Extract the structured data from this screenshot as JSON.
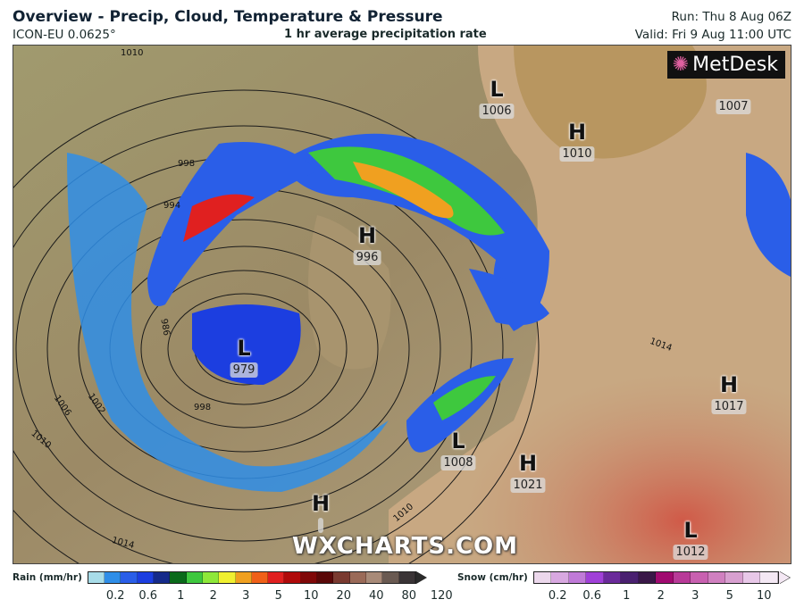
{
  "header": {
    "title": "Overview - Precip, Cloud, Temperature & Pressure",
    "model": "ICON-EU 0.0625°",
    "subtitle": "1 hr average precipitation rate",
    "run": "Run: Thu 8 Aug 06Z",
    "valid": "Valid: Fri 9 Aug 11:00 UTC"
  },
  "map": {
    "logo": "MetDesk",
    "watermark": "WXCHARTS.COM",
    "pressure_centers": [
      {
        "type": "L",
        "value": "1006"
      },
      {
        "type": "H",
        "value": "1010"
      },
      {
        "type": "",
        "value": "1007"
      },
      {
        "type": "H",
        "value": "996"
      },
      {
        "type": "L",
        "value": "979"
      },
      {
        "type": "H",
        "value": "1017"
      },
      {
        "type": "L",
        "value": "1008"
      },
      {
        "type": "H",
        "value": "1021"
      },
      {
        "type": "H",
        "value": ""
      },
      {
        "type": "L",
        "value": "1012"
      }
    ],
    "isobar_labels": [
      "1010",
      "998",
      "994",
      "986",
      "1002",
      "1006",
      "1010",
      "1014",
      "998",
      "1014",
      "1010"
    ]
  },
  "legend": {
    "rain": {
      "label": "Rain (mm/hr)",
      "ticks": [
        "0.2",
        "0.6",
        "1",
        "2",
        "3",
        "5",
        "10",
        "20",
        "40",
        "80",
        "120"
      ],
      "colors": [
        "#a8dce8",
        "#2f8ee8",
        "#2a5ee8",
        "#1c3ee0",
        "#152a8a",
        "#0a6a1a",
        "#3ec83e",
        "#8ee83a",
        "#f0f030",
        "#f0a020",
        "#f06018",
        "#e02020",
        "#b00a0a",
        "#800808",
        "#5a0808",
        "#7a3a30",
        "#9a6a58",
        "#a88a78",
        "#6a5a52",
        "#3a3436"
      ]
    },
    "snow": {
      "label": "Snow (cm/hr)",
      "ticks": [
        "0.2",
        "0.6",
        "1",
        "2",
        "3",
        "5",
        "10"
      ],
      "colors": [
        "#ecd8ec",
        "#d8a8e0",
        "#c07ad8",
        "#a040d8",
        "#6a2a9a",
        "#4a2070",
        "#3a1848",
        "#a00a70",
        "#b83a98",
        "#c860b0",
        "#d080c0",
        "#d8a0d0",
        "#e8c8e8",
        "#f4e8f4"
      ]
    }
  },
  "colors": {
    "ocean": "#9a8a62",
    "land": "#c8b08a",
    "warm_land": "#c87860"
  }
}
